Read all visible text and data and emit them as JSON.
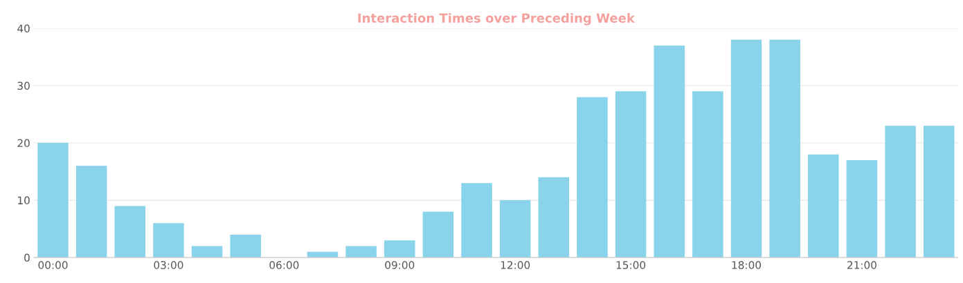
{
  "chart_data": {
    "type": "bar",
    "title": "Interaction Times over Preceding Week",
    "categories": [
      "00:00",
      null,
      null,
      "03:00",
      null,
      null,
      "06:00",
      null,
      null,
      "09:00",
      null,
      null,
      "12:00",
      null,
      null,
      "15:00",
      null,
      null,
      "18:00",
      null,
      null,
      "21:00",
      null,
      null
    ],
    "values": [
      20,
      16,
      9,
      6,
      2,
      4,
      0,
      1,
      2,
      3,
      8,
      13,
      10,
      14,
      28,
      29,
      37,
      29,
      38,
      38,
      18,
      17,
      23,
      23
    ],
    "color": "#8ad4eb",
    "ylim": [
      0,
      40
    ],
    "yticks": [
      0,
      10,
      20,
      30,
      40
    ],
    "grid": "y",
    "legend": false
  }
}
